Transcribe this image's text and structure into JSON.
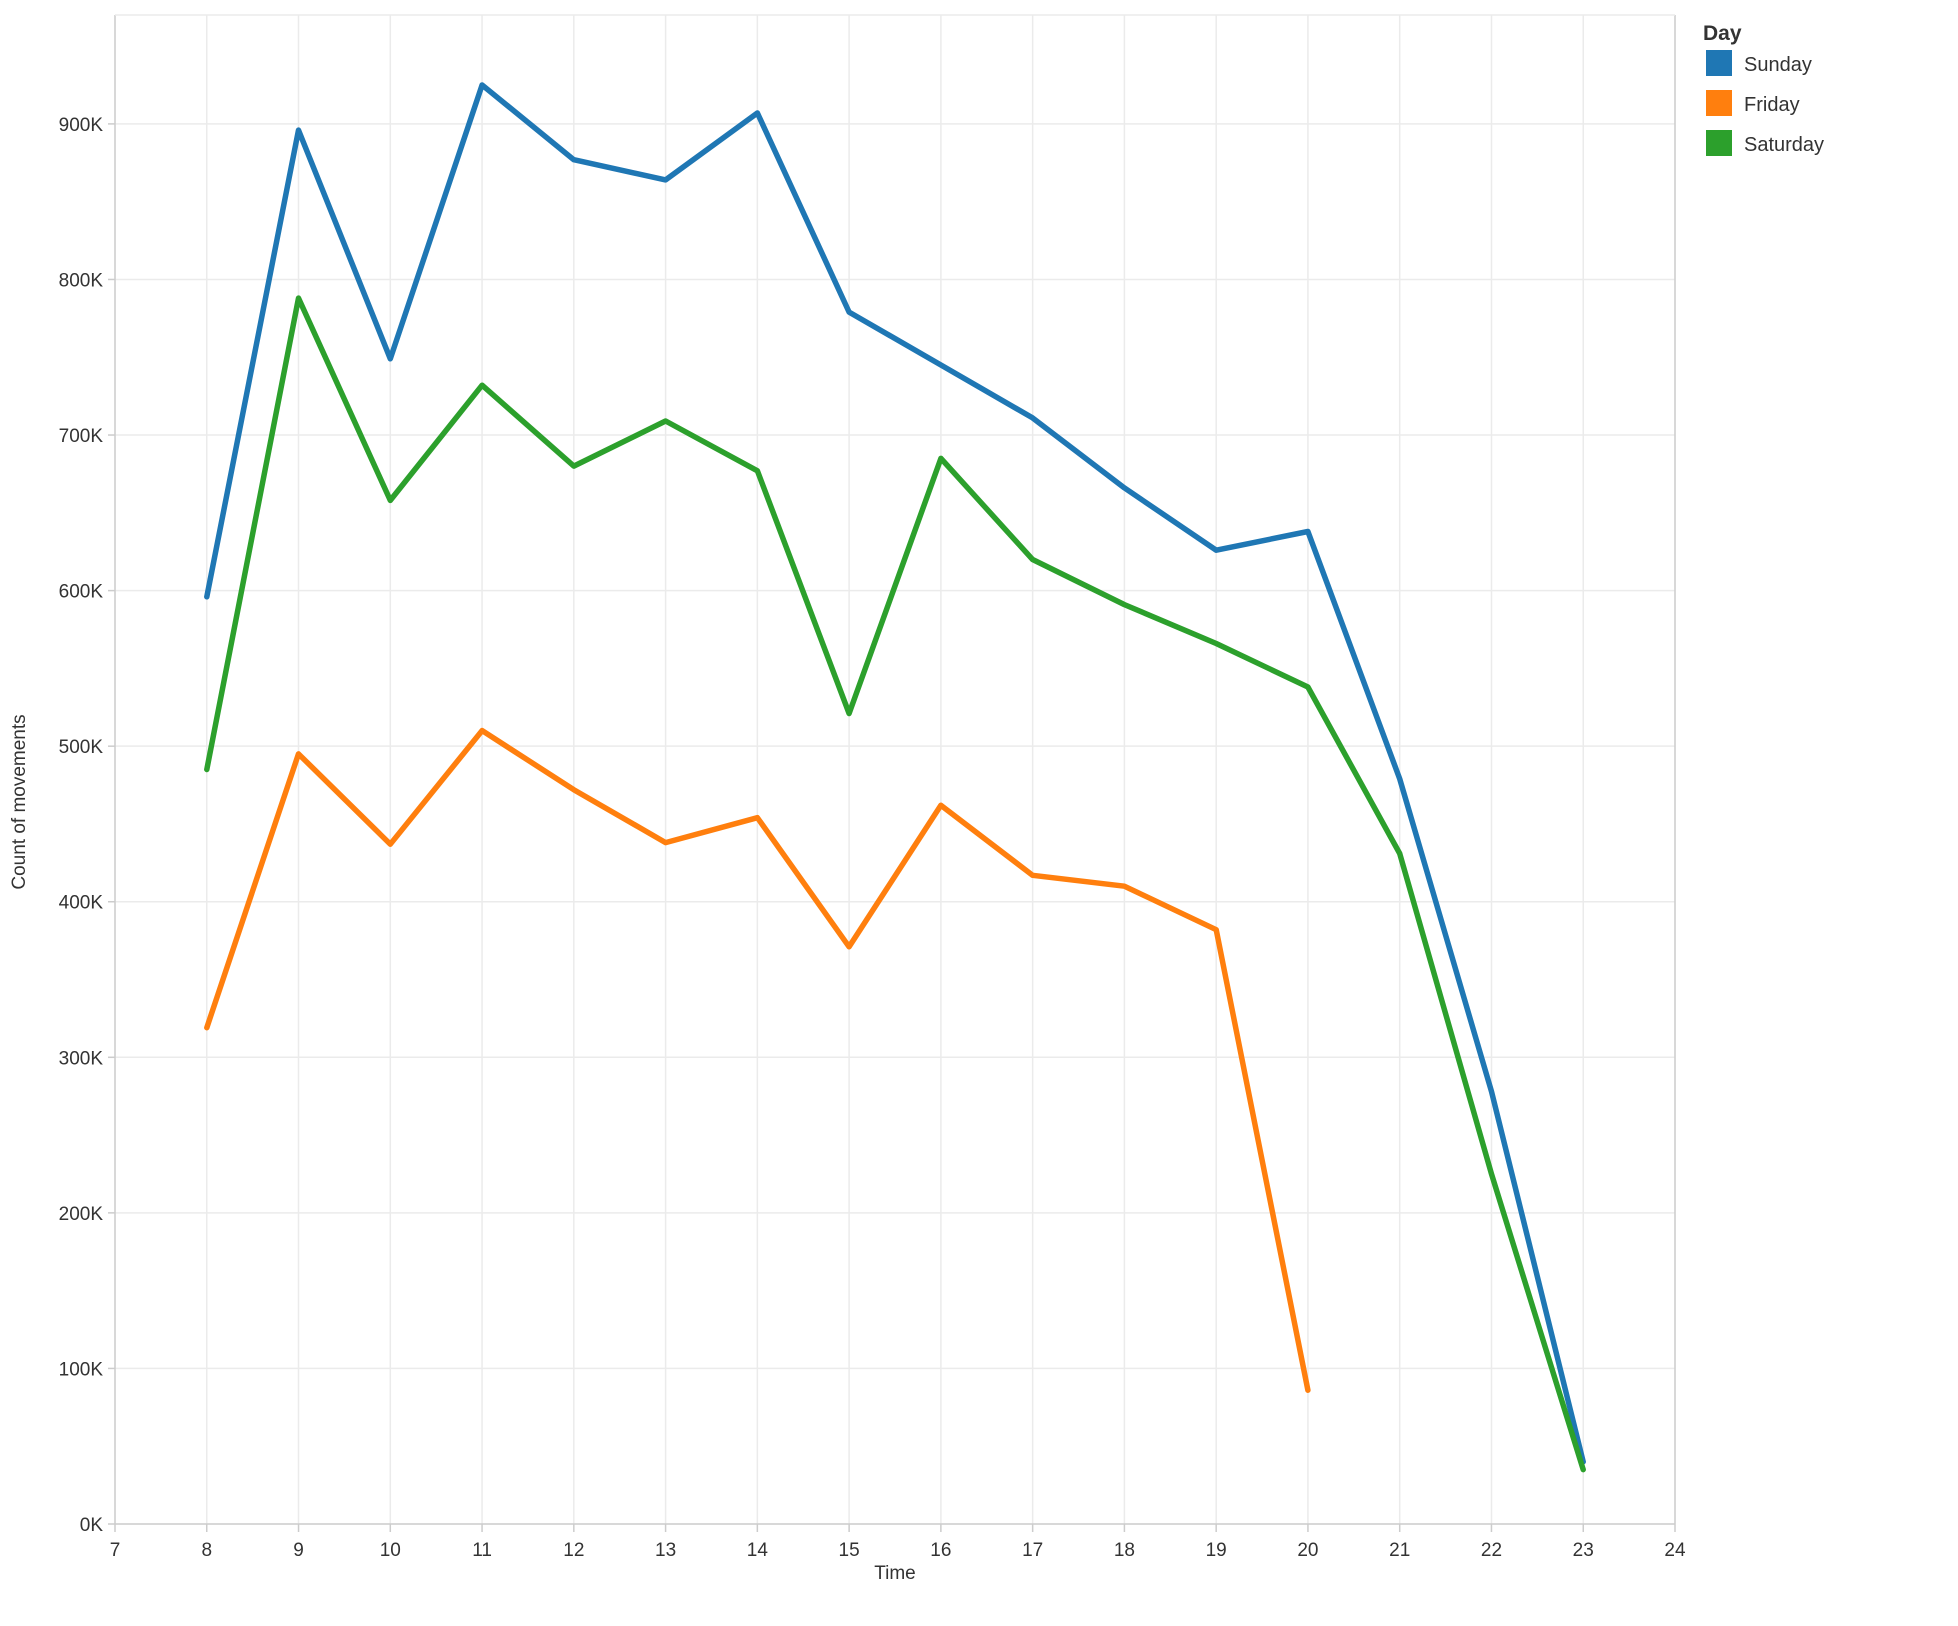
{
  "chart_data": {
    "type": "line",
    "title": "",
    "xlabel": "Time",
    "ylabel": "Count of movements",
    "xlim": [
      7,
      24
    ],
    "ylim": [
      0,
      970000
    ],
    "x_ticks": [
      7,
      8,
      9,
      10,
      11,
      12,
      13,
      14,
      15,
      16,
      17,
      18,
      19,
      20,
      21,
      22,
      23,
      24
    ],
    "x_tick_labels": [
      "7",
      "8",
      "9",
      "10",
      "11",
      "12",
      "13",
      "14",
      "15",
      "16",
      "17",
      "18",
      "19",
      "20",
      "21",
      "22",
      "23",
      "24"
    ],
    "y_ticks": [
      0,
      100000,
      200000,
      300000,
      400000,
      500000,
      600000,
      700000,
      800000,
      900000
    ],
    "y_tick_labels": [
      "0K",
      "100K",
      "200K",
      "300K",
      "400K",
      "500K",
      "600K",
      "700K",
      "800K",
      "900K"
    ],
    "grid": true,
    "legend": {
      "title": "Day",
      "placement": "top-right",
      "entries": [
        "Sunday",
        "Friday",
        "Saturday"
      ]
    },
    "series": [
      {
        "name": "Sunday",
        "color": "#1f77b4",
        "x": [
          8,
          9,
          10,
          11,
          12,
          13,
          14,
          15,
          16,
          17,
          18,
          19,
          20,
          21,
          22,
          23
        ],
        "y": [
          596000,
          896000,
          749000,
          925000,
          877000,
          864000,
          907000,
          779000,
          745000,
          711000,
          666000,
          626000,
          638000,
          479000,
          278000,
          40000
        ]
      },
      {
        "name": "Friday",
        "color": "#ff7f0e",
        "x": [
          8,
          9,
          10,
          11,
          12,
          13,
          14,
          15,
          16,
          17,
          18,
          19,
          20
        ],
        "y": [
          319000,
          495000,
          437000,
          510000,
          472000,
          438000,
          454000,
          371000,
          462000,
          417000,
          410000,
          382000,
          86000
        ]
      },
      {
        "name": "Saturday",
        "color": "#2ca02c",
        "x": [
          8,
          9,
          10,
          11,
          12,
          13,
          14,
          15,
          16,
          17,
          18,
          19,
          20,
          21,
          22,
          23
        ],
        "y": [
          485000,
          788000,
          658000,
          732000,
          680000,
          709000,
          677000,
          521000,
          685000,
          620000,
          591000,
          566000,
          538000,
          431000,
          225000,
          35000
        ]
      }
    ]
  },
  "colors": {
    "gridline": "#ebebeb",
    "axis": "#cccccc",
    "text": "#333333"
  }
}
